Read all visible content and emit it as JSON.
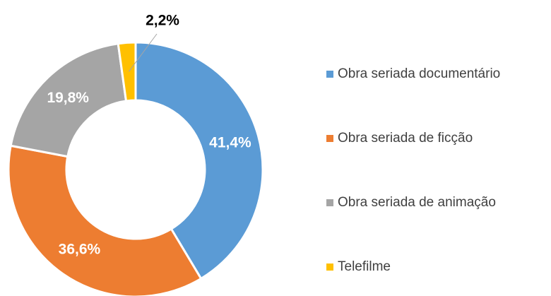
{
  "chart_data": {
    "type": "donut",
    "categories": [
      "Obra seriada documentário",
      "Obra seriada de ficção",
      "Obra seriada de animação",
      "Telefilme"
    ],
    "values": [
      41.4,
      36.6,
      19.8,
      2.2
    ],
    "value_labels": [
      "41,4%",
      "36,6%",
      "19,8%",
      "2,2%"
    ],
    "colors": [
      "#5b9bd5",
      "#ed7d31",
      "#a5a5a5",
      "#ffc000"
    ],
    "legend": "right"
  }
}
